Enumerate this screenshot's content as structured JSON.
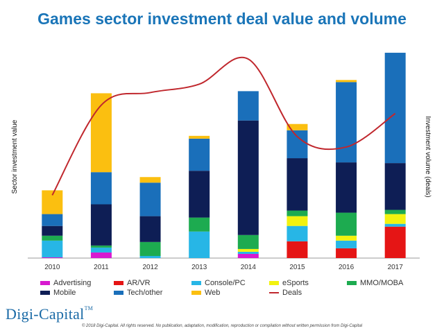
{
  "chart_data": {
    "type": "bar",
    "title": "Games sector investment deal value and volume",
    "ylabel": "Sector investment value",
    "y2label": "Investment volume (deals)",
    "categories": [
      "2010",
      "2011",
      "2012",
      "2013",
      "2014",
      "2015",
      "2016",
      "2017"
    ],
    "ylim": [
      0,
      300
    ],
    "series": [
      {
        "name": "Advertising",
        "color": "#d81ad0",
        "values": [
          1,
          8,
          0,
          0,
          6,
          0,
          0,
          0
        ]
      },
      {
        "name": "AR/VR",
        "color": "#e51515",
        "values": [
          0,
          0,
          0,
          0,
          0,
          24,
          14,
          45
        ]
      },
      {
        "name": "Console/PC",
        "color": "#27b6e6",
        "values": [
          24,
          7,
          3,
          38,
          3,
          22,
          11,
          4
        ]
      },
      {
        "name": "eSports",
        "color": "#f2f20f",
        "values": [
          0,
          0,
          0,
          0,
          4,
          14,
          7,
          14
        ]
      },
      {
        "name": "MMO/MOBA",
        "color": "#1dab50",
        "values": [
          7,
          3,
          20,
          20,
          20,
          8,
          33,
          6
        ]
      },
      {
        "name": "Mobile",
        "color": "#0e1e55",
        "values": [
          14,
          59,
          37,
          67,
          164,
          75,
          72,
          67
        ]
      },
      {
        "name": "Tech/other",
        "color": "#1a6fba",
        "values": [
          17,
          46,
          48,
          46,
          42,
          40,
          115,
          158
        ]
      },
      {
        "name": "Web",
        "color": "#fbbf10",
        "values": [
          34,
          113,
          8,
          4,
          0,
          9,
          3,
          0
        ]
      }
    ],
    "line_series": {
      "name": "Deals",
      "color": "#c0272d",
      "values": [
        30,
        73,
        79,
        83,
        95,
        58,
        53,
        69
      ],
      "ylim": [
        0,
        100
      ]
    }
  },
  "footer": {
    "brand": "Digi-Capital",
    "trademark": "TM",
    "copyright": "© 2018 Digi-Capital. All rights reserved. No publication, adaptation, modification, reproduction or compilation without written permission from Digi-Capital"
  }
}
